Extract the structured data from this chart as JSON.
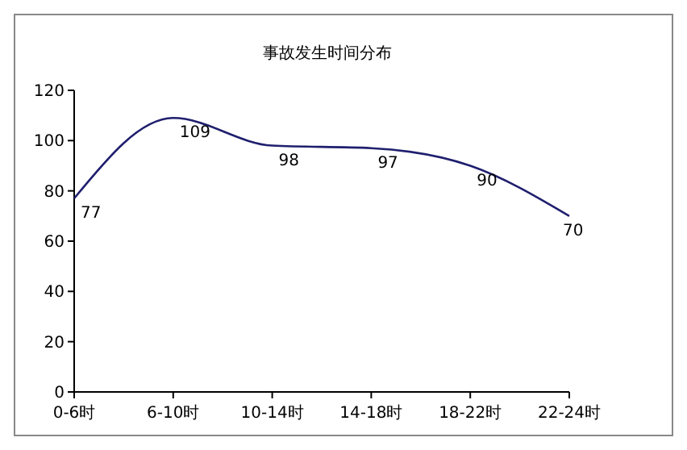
{
  "chart_data": {
    "type": "line",
    "title": "事故发生时间分布",
    "categories": [
      "0-6时",
      "6-10时",
      "10-14时",
      "14-18时",
      "18-22时",
      "22-24时"
    ],
    "series": [
      {
        "color": "#1f1f6e",
        "values": [
          77,
          109,
          98,
          97,
          90,
          70
        ]
      }
    ],
    "ylim": [
      0,
      120
    ],
    "yticks": [
      0,
      20,
      40,
      60,
      80,
      100,
      120
    ],
    "data_labels": true,
    "marker": "none",
    "line_style": "solid"
  }
}
